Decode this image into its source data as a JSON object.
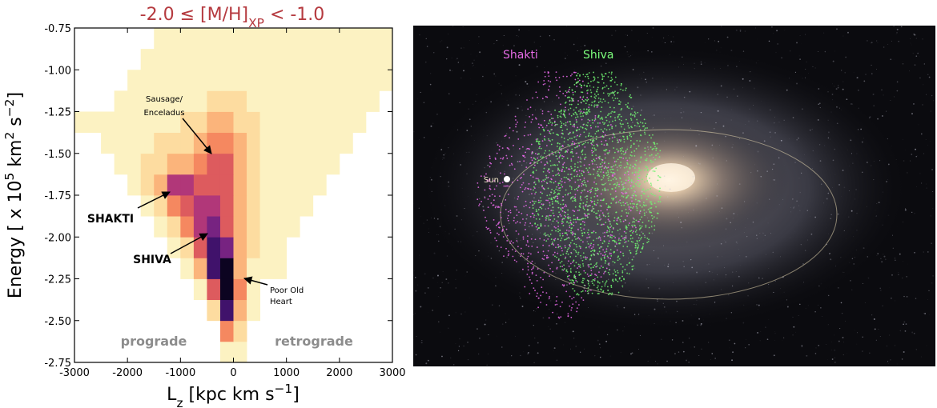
{
  "chart_data": {
    "type": "histogram2d",
    "title": [
      {
        "text": "-2.0 ≤ [M/H]"
      },
      {
        "text": "XP",
        "shift": "sub"
      },
      {
        "text": " < -1.0"
      }
    ],
    "xlabel": [
      {
        "text": "L"
      },
      {
        "text": "z",
        "shift": "sub"
      },
      {
        "text": " [kpc km s"
      },
      {
        "text": "−1",
        "shift": "super"
      },
      {
        "text": "]"
      }
    ],
    "ylabel": [
      {
        "text": "Energy [ x 10"
      },
      {
        "text": "5",
        "shift": "super"
      },
      {
        "text": " km"
      },
      {
        "text": "2",
        "shift": "super"
      },
      {
        "text": " s"
      },
      {
        "text": "−2",
        "shift": "super"
      },
      {
        "text": "]"
      }
    ],
    "xlim": [
      -3000,
      3000
    ],
    "xticks": [
      -3000,
      -2000,
      -1000,
      0,
      1000,
      2000,
      3000
    ],
    "ylim": [
      -2.75,
      -0.75
    ],
    "yticks": [
      -2.75,
      {
        "value": -2.5,
        "label": "-2.50"
      },
      -2.25,
      {
        "value": -2,
        "label": "-2.00"
      },
      -1.75,
      {
        "value": -1.5,
        "label": "-1.50"
      },
      -1.25,
      {
        "value": -1,
        "label": "-1.00"
      },
      -0.75
    ],
    "xbins": [
      -3000,
      -2750,
      -2500,
      -2250,
      -2000,
      -1750,
      -1500,
      -1250,
      -1000,
      -750,
      -500,
      -250,
      0,
      250,
      500,
      750,
      1000,
      1250,
      1500,
      1750,
      2000,
      2250,
      2500,
      2750,
      3000
    ],
    "ybins": [
      -2.75,
      -2.625,
      -2.5,
      -2.375,
      -2.25,
      -2.125,
      -2,
      -1.875,
      -1.75,
      -1.625,
      -1.5,
      -1.375,
      -1.25,
      -1.125,
      -1,
      -0.875,
      -0.75
    ],
    "counts": [
      [
        0,
        0,
        0,
        0,
        0,
        0,
        0,
        0,
        0,
        0,
        0,
        1,
        1,
        0,
        0,
        0,
        0,
        0,
        0,
        0,
        0,
        0,
        0,
        0
      ],
      [
        0,
        0,
        0,
        0,
        0,
        0,
        0,
        0,
        0,
        0,
        0,
        4,
        2,
        0,
        0,
        0,
        0,
        0,
        0,
        0,
        0,
        0,
        0,
        0
      ],
      [
        0,
        0,
        0,
        0,
        0,
        0,
        0,
        0,
        0,
        0,
        2,
        8,
        3,
        1,
        0,
        0,
        0,
        0,
        0,
        0,
        0,
        0,
        0,
        0
      ],
      [
        0,
        0,
        0,
        0,
        0,
        0,
        0,
        0,
        0,
        1,
        5,
        9,
        4,
        1,
        0,
        0,
        0,
        0,
        0,
        0,
        0,
        0,
        0,
        0
      ],
      [
        0,
        0,
        0,
        0,
        0,
        0,
        0,
        0,
        1,
        3,
        8,
        9,
        3,
        1,
        1,
        1,
        0,
        0,
        0,
        0,
        0,
        0,
        0,
        0
      ],
      [
        0,
        0,
        0,
        0,
        0,
        0,
        0,
        1,
        2,
        5,
        8,
        7,
        3,
        2,
        1,
        1,
        0,
        0,
        0,
        0,
        0,
        0,
        0,
        0
      ],
      [
        0,
        0,
        0,
        0,
        0,
        0,
        1,
        2,
        4,
        6,
        7,
        5,
        3,
        2,
        1,
        1,
        1,
        0,
        0,
        0,
        0,
        0,
        0,
        0
      ],
      [
        0,
        0,
        0,
        0,
        0,
        1,
        2,
        4,
        5,
        6,
        6,
        5,
        3,
        2,
        1,
        1,
        1,
        1,
        0,
        0,
        0,
        0,
        0,
        0
      ],
      [
        0,
        0,
        0,
        0,
        1,
        2,
        3,
        6,
        6,
        5,
        5,
        5,
        3,
        2,
        1,
        1,
        1,
        1,
        1,
        0,
        0,
        0,
        0,
        0
      ],
      [
        0,
        0,
        0,
        1,
        1,
        2,
        2,
        3,
        3,
        4,
        5,
        5,
        3,
        2,
        1,
        1,
        1,
        1,
        1,
        1,
        0,
        0,
        0,
        0
      ],
      [
        0,
        0,
        1,
        1,
        1,
        1,
        2,
        2,
        2,
        3,
        4,
        4,
        3,
        2,
        1,
        1,
        1,
        1,
        1,
        1,
        1,
        0,
        0,
        0
      ],
      [
        1,
        1,
        1,
        1,
        1,
        1,
        1,
        1,
        2,
        2,
        3,
        3,
        2,
        2,
        1,
        1,
        1,
        1,
        1,
        1,
        1,
        1,
        0,
        0
      ],
      [
        0,
        0,
        0,
        1,
        1,
        1,
        1,
        1,
        1,
        1,
        2,
        2,
        2,
        1,
        1,
        1,
        1,
        1,
        1,
        1,
        1,
        1,
        1,
        0
      ],
      [
        0,
        0,
        0,
        0,
        1,
        1,
        1,
        1,
        1,
        1,
        1,
        1,
        1,
        1,
        1,
        1,
        1,
        1,
        1,
        1,
        1,
        1,
        1,
        1
      ],
      [
        0,
        0,
        0,
        0,
        0,
        1,
        1,
        1,
        1,
        1,
        1,
        1,
        1,
        1,
        1,
        1,
        1,
        1,
        1,
        1,
        1,
        1,
        1,
        1
      ],
      [
        0,
        0,
        0,
        0,
        0,
        0,
        1,
        1,
        1,
        1,
        1,
        1,
        1,
        1,
        1,
        1,
        1,
        1,
        1,
        1,
        1,
        1,
        1,
        1
      ]
    ],
    "colormap": [
      "#fcf2c2",
      "#fddca0",
      "#fbb47b",
      "#f58860",
      "#dd5b5e",
      "#b13779",
      "#772381",
      "#40126b",
      "#0c0421"
    ],
    "annotations": {
      "sausage": [
        "Sausage/",
        "Enceladus"
      ],
      "shakti": [
        "SHAKTI"
      ],
      "shiva": [
        "SHIVA"
      ],
      "heart": [
        "Poor Old",
        "Heart"
      ],
      "prograde": [
        "prograde"
      ],
      "retrograde": [
        "retrograde"
      ]
    }
  },
  "image": {
    "labels": {
      "shakti": "Shakti",
      "shiva": "Shiva",
      "sun": "Sun"
    }
  }
}
